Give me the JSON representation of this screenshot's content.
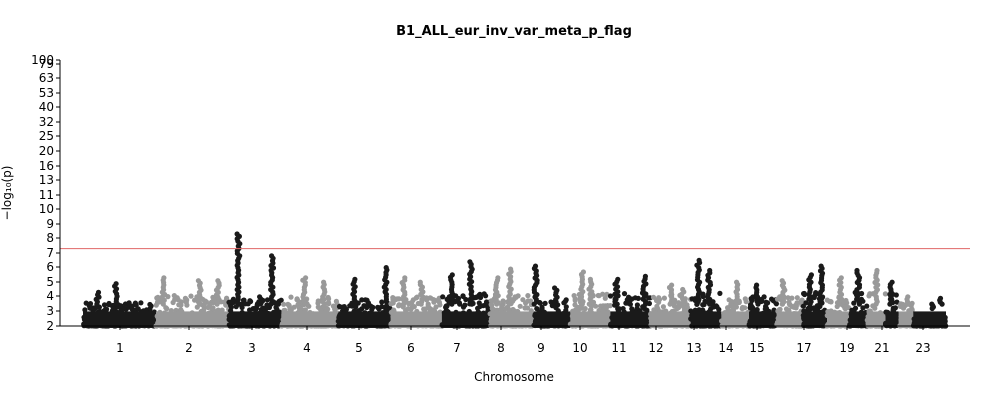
{
  "chart_data": {
    "type": "scatter",
    "title": "B1_ALL_eur_inv_var_meta_p_flag",
    "xlabel": "Chromosome",
    "ylabel": "−log₁₀(p)",
    "y_scale": "compressed above ~10 (tick labels printed)",
    "y_ticks": [
      "2",
      "3",
      "4",
      "5",
      "6",
      "7",
      "8",
      "9",
      "10",
      "11",
      "13",
      "16",
      "20",
      "25",
      "32",
      "40",
      "53",
      "63",
      "79",
      "100"
    ],
    "x_tick_labels": [
      "1",
      "2",
      "3",
      "4",
      "5",
      "6",
      "7",
      "8",
      "9",
      "10",
      "11",
      "12",
      "13",
      "14",
      "15",
      "17",
      "19",
      "21",
      "23"
    ],
    "significance_line": {
      "y": 7.3,
      "color": "#e06666"
    },
    "colors": {
      "dark": "#1a1a1a",
      "light": "#999999"
    },
    "chromosomes": [
      {
        "chr": "1",
        "color": "dark",
        "base_max": 3.6,
        "peaks": [
          [
            0.45,
            4.9
          ],
          [
            0.2,
            4.3
          ]
        ]
      },
      {
        "chr": "2",
        "color": "light",
        "base_max": 4.1,
        "peaks": [
          [
            0.1,
            5.3
          ],
          [
            0.6,
            5.1
          ],
          [
            0.85,
            5.1
          ]
        ]
      },
      {
        "chr": "3",
        "color": "dark",
        "base_max": 3.9,
        "peaks": [
          [
            0.18,
            8.3
          ],
          [
            0.82,
            6.8
          ],
          [
            0.6,
            4.0
          ]
        ]
      },
      {
        "chr": "4",
        "color": "light",
        "base_max": 4.0,
        "peaks": [
          [
            0.4,
            5.3
          ],
          [
            0.75,
            5.0
          ]
        ]
      },
      {
        "chr": "5",
        "color": "dark",
        "base_max": 3.8,
        "peaks": [
          [
            0.3,
            5.2
          ],
          [
            0.9,
            6.0
          ]
        ]
      },
      {
        "chr": "6",
        "color": "light",
        "base_max": 4.0,
        "peaks": [
          [
            0.25,
            5.3
          ],
          [
            0.6,
            5.0
          ]
        ]
      },
      {
        "chr": "7",
        "color": "dark",
        "base_max": 4.2,
        "peaks": [
          [
            0.6,
            6.4
          ],
          [
            0.2,
            5.5
          ]
        ]
      },
      {
        "chr": "8",
        "color": "light",
        "base_max": 4.1,
        "peaks": [
          [
            0.45,
            5.9
          ],
          [
            0.15,
            5.3
          ]
        ]
      },
      {
        "chr": "9",
        "color": "dark",
        "base_max": 3.8,
        "peaks": [
          [
            0.05,
            6.1
          ],
          [
            0.6,
            4.6
          ]
        ]
      },
      {
        "chr": "10",
        "color": "light",
        "base_max": 4.2,
        "peaks": [
          [
            0.3,
            5.7
          ],
          [
            0.5,
            5.2
          ]
        ]
      },
      {
        "chr": "11",
        "color": "dark",
        "base_max": 4.3,
        "peaks": [
          [
            0.15,
            5.2
          ],
          [
            0.85,
            5.4
          ]
        ]
      },
      {
        "chr": "12",
        "color": "light",
        "base_max": 4.1,
        "peaks": [
          [
            0.5,
            4.8
          ],
          [
            0.8,
            4.5
          ]
        ]
      },
      {
        "chr": "13",
        "color": "dark",
        "base_max": 4.3,
        "peaks": [
          [
            0.25,
            6.5
          ],
          [
            0.6,
            5.8
          ]
        ]
      },
      {
        "chr": "14",
        "color": "light",
        "base_max": 3.9,
        "peaks": [
          [
            0.55,
            5.0
          ]
        ]
      },
      {
        "chr": "15",
        "color": "dark",
        "base_max": 4.0,
        "peaks": [
          [
            0.3,
            4.8
          ]
        ]
      },
      {
        "chr": "16",
        "color": "light",
        "base_max": 4.1,
        "peaks": [
          [
            0.25,
            5.1
          ]
        ]
      },
      {
        "chr": "17",
        "color": "dark",
        "base_max": 4.3,
        "peaks": [
          [
            0.75,
            6.1
          ],
          [
            0.3,
            5.5
          ]
        ]
      },
      {
        "chr": "18",
        "color": "light",
        "base_max": 4.0,
        "peaks": [
          [
            0.6,
            5.3
          ]
        ]
      },
      {
        "chr": "19",
        "color": "dark",
        "base_max": 4.3,
        "peaks": [
          [
            0.5,
            5.8
          ]
        ]
      },
      {
        "chr": "20",
        "color": "light",
        "base_max": 4.3,
        "peaks": [
          [
            0.5,
            5.8
          ]
        ]
      },
      {
        "chr": "21",
        "color": "dark",
        "base_max": 4.2,
        "peaks": [
          [
            0.45,
            5.0
          ]
        ]
      },
      {
        "chr": "22",
        "color": "light",
        "base_max": 3.6,
        "peaks": [
          [
            0.6,
            4.0
          ]
        ]
      },
      {
        "chr": "23",
        "color": "dark",
        "base_max": 2.6,
        "peaks": [
          [
            0.85,
            3.9
          ],
          [
            0.6,
            3.2
          ]
        ]
      }
    ]
  }
}
